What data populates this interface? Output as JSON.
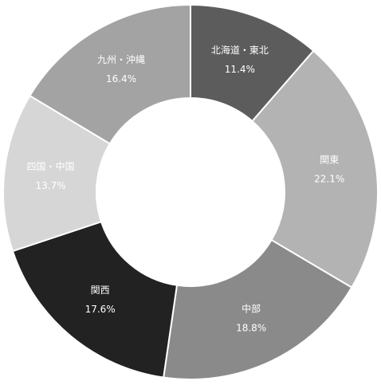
{
  "chart_data": {
    "type": "donut",
    "categories": [
      "北海道・東北",
      "関東",
      "中部",
      "関西",
      "四国・中国",
      "九州・沖縄"
    ],
    "values": [
      11.4,
      22.1,
      18.8,
      17.6,
      13.7,
      16.4
    ],
    "value_labels": [
      "11.4%",
      "22.1%",
      "18.8%",
      "17.6%",
      "13.7%",
      "16.4%"
    ],
    "colors": [
      "#5c5c5c",
      "#b3b3b3",
      "#8a8a8a",
      "#222222",
      "#d6d6d6",
      "#a3a3a3"
    ]
  }
}
